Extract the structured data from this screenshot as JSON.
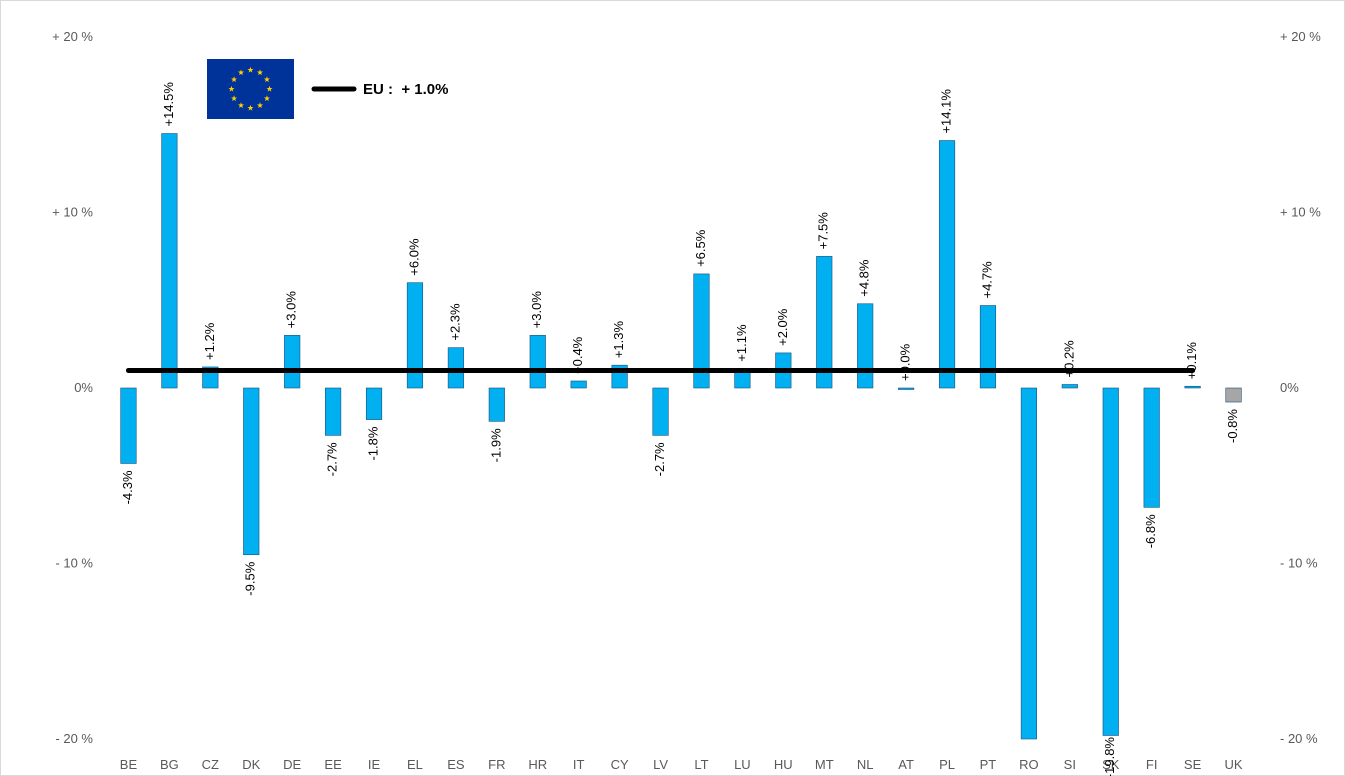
{
  "chart_data": {
    "type": "bar",
    "categories": [
      "BE",
      "BG",
      "CZ",
      "DK",
      "DE",
      "EE",
      "IE",
      "EL",
      "ES",
      "FR",
      "HR",
      "IT",
      "CY",
      "LV",
      "LT",
      "LU",
      "HU",
      "MT",
      "NL",
      "AT",
      "PL",
      "PT",
      "RO",
      "SI",
      "SK",
      "FI",
      "SE",
      "UK"
    ],
    "values": [
      -4.3,
      14.5,
      1.2,
      -9.5,
      3.0,
      -2.7,
      -1.8,
      6.0,
      2.3,
      -1.9,
      3.0,
      0.4,
      1.3,
      -2.7,
      6.5,
      1.1,
      2.0,
      7.5,
      4.8,
      0.0,
      14.1,
      4.7,
      -20.0,
      0.2,
      -19.8,
      -6.8,
      0.1,
      -0.8
    ],
    "data_labels": [
      "-4.3%",
      "+14.5%",
      "+1.2%",
      "-9.5%",
      "+3.0%",
      "-2.7%",
      "-1.8%",
      "+6.0%",
      "+2.3%",
      "-1.9%",
      "+3.0%",
      "+0.4%",
      "+1.3%",
      "-2.7%",
      "+6.5%",
      "+1.1%",
      "+2.0%",
      "+7.5%",
      "+4.8%",
      "+0.0%",
      "+14.1%",
      "+4.7%",
      "",
      "+0.2%",
      "-19.8%",
      "-6.8%",
      "+0.1%",
      "-0.8%"
    ],
    "y_ticks": [
      20,
      10,
      0,
      -10,
      -20
    ],
    "y_tick_labels": [
      "+ 20 %",
      "+ 10 %",
      "0%",
      "- 10 %",
      "- 20 %"
    ],
    "ylim": [
      -20,
      20
    ],
    "reference_line": {
      "label": "EU :  + 1.0%",
      "value": 1.0
    },
    "colors": {
      "bar": "#00B0F0",
      "bar_highlight": "#A6A6A6",
      "bar_edge": "#1F4E79",
      "eu_line": "#000000",
      "flag_bg": "#003399",
      "flag_stars": "#FFCC00"
    },
    "highlight_category": "UK",
    "legend_placement": "top-left",
    "grid": false
  }
}
